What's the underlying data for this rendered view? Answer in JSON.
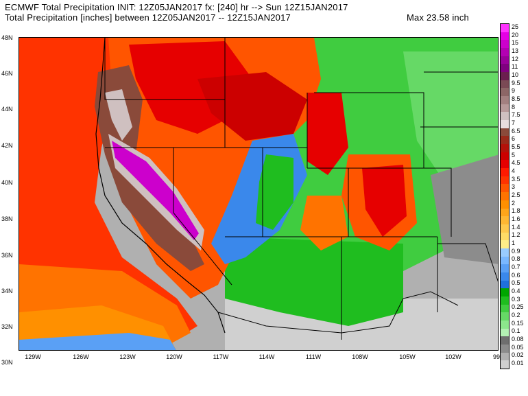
{
  "header": {
    "line1": "ECMWF Total Precipitation INIT: 12Z05JAN2017 fx: [240] hr --> Sun 12Z15JAN2017",
    "line2": "Total Precipitation [inches] between 12Z05JAN2017 -- 12Z15JAN2017",
    "max": "Max 23.58 inch"
  },
  "lat_labels": [
    "48N",
    "46N",
    "44N",
    "42N",
    "40N",
    "38N",
    "36N",
    "34N",
    "32N",
    "30N"
  ],
  "lon_labels": [
    "129W",
    "126W",
    "123W",
    "120W",
    "117W",
    "114W",
    "111W",
    "108W",
    "105W",
    "102W",
    "99"
  ],
  "legend": {
    "labels": [
      "25",
      "20",
      "15",
      "13",
      "12",
      "11",
      "10",
      "9.5",
      "9",
      "8.5",
      "8",
      "7.5",
      "7",
      "6.5",
      "6",
      "5.5",
      "5",
      "4.5",
      "4",
      "3.5",
      "3",
      "2.5",
      "2",
      "1.8",
      "1.6",
      "1.4",
      "1.2",
      "1",
      "0.9",
      "0.8",
      "0.7",
      "0.6",
      "0.5",
      "0.4",
      "0.3",
      "0.25",
      "0.2",
      "0.15",
      "0.1",
      "0.08",
      "0.05",
      "0.02",
      "0.01"
    ],
    "colors": [
      "#ff33ff",
      "#e600e6",
      "#cc00cc",
      "#b300b3",
      "#99009a",
      "#800080",
      "#6b1f4f",
      "#7a4a55",
      "#8c6666",
      "#a38080",
      "#b89a9a",
      "#cfc0c0",
      "#e8dede",
      "#8a4a3a",
      "#9a2a1a",
      "#b3120a",
      "#cc0000",
      "#e60000",
      "#ff1a00",
      "#ff3300",
      "#ff5500",
      "#ff7300",
      "#ff9000",
      "#ffa51a",
      "#ffb733",
      "#ffc94d",
      "#ffdb66",
      "#ffee88",
      "#99ccff",
      "#7ab8ff",
      "#5aa0f5",
      "#3a88eb",
      "#1f70dd",
      "#00a600",
      "#1fbd1f",
      "#40cc40",
      "#66d966",
      "#8ce68c",
      "#b3f0b3",
      "#6e6e6e",
      "#8c8c8c",
      "#b0b0b0",
      "#d0d0d0"
    ]
  },
  "map": {
    "place": "Western United States",
    "colors": {
      "ocean_deep": "#ff3300",
      "ocean_mid": "#ff5500",
      "ocean_south": "#ff9000",
      "ocean_far_south": "#5aa0f5",
      "coastal_heavy": "#8a4a3a",
      "sierra_extreme": "#cc00cc",
      "sierra_edge": "#cfc0c0",
      "heavy_red": "#e60000",
      "moderate_orange": "#ff7300",
      "blue_band": "#3a88eb",
      "green_light": "#1fbd1f",
      "green_pale": "#66d966",
      "gray_dry": "#b0b0b0"
    }
  }
}
